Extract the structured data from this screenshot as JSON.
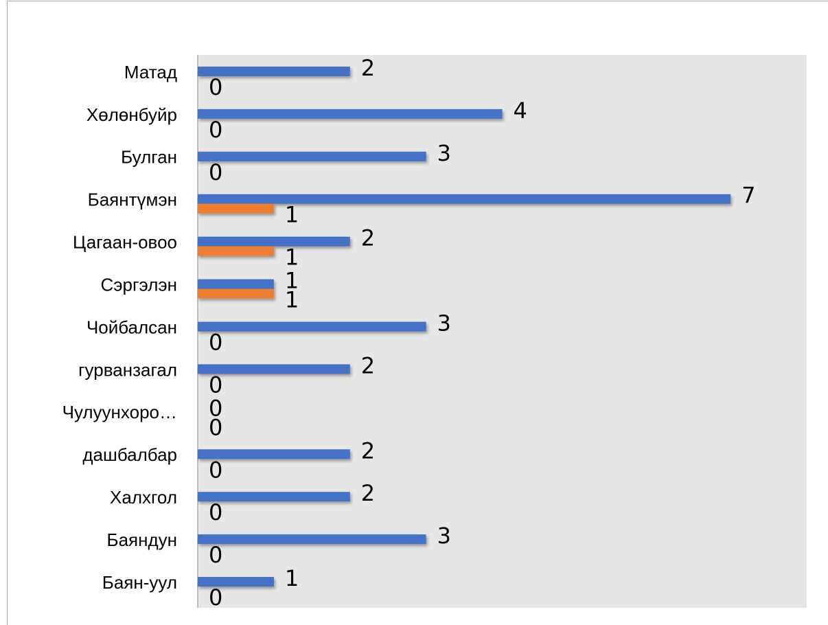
{
  "chart_data": {
    "type": "hbar",
    "categories": [
      "Матад",
      "Хөлөнбуйр",
      "Булган",
      "Баянтүмэн",
      "Цагаан-овоо",
      "Сэргэлэн",
      "Чойбалсан",
      "гурванзагал",
      "Чулуунхоро…",
      "дашбалбар",
      "Халхгол",
      "Баяндун",
      "Баян-уул"
    ],
    "series": [
      {
        "color": "#4472c4",
        "values": [
          2,
          4,
          3,
          7,
          2,
          1,
          3,
          2,
          0,
          2,
          2,
          3,
          1
        ]
      },
      {
        "color": "#ed7d31",
        "values": [
          0,
          0,
          0,
          1,
          1,
          1,
          0,
          0,
          0,
          0,
          0,
          0,
          0
        ]
      }
    ],
    "xlim": [
      0,
      8
    ]
  }
}
